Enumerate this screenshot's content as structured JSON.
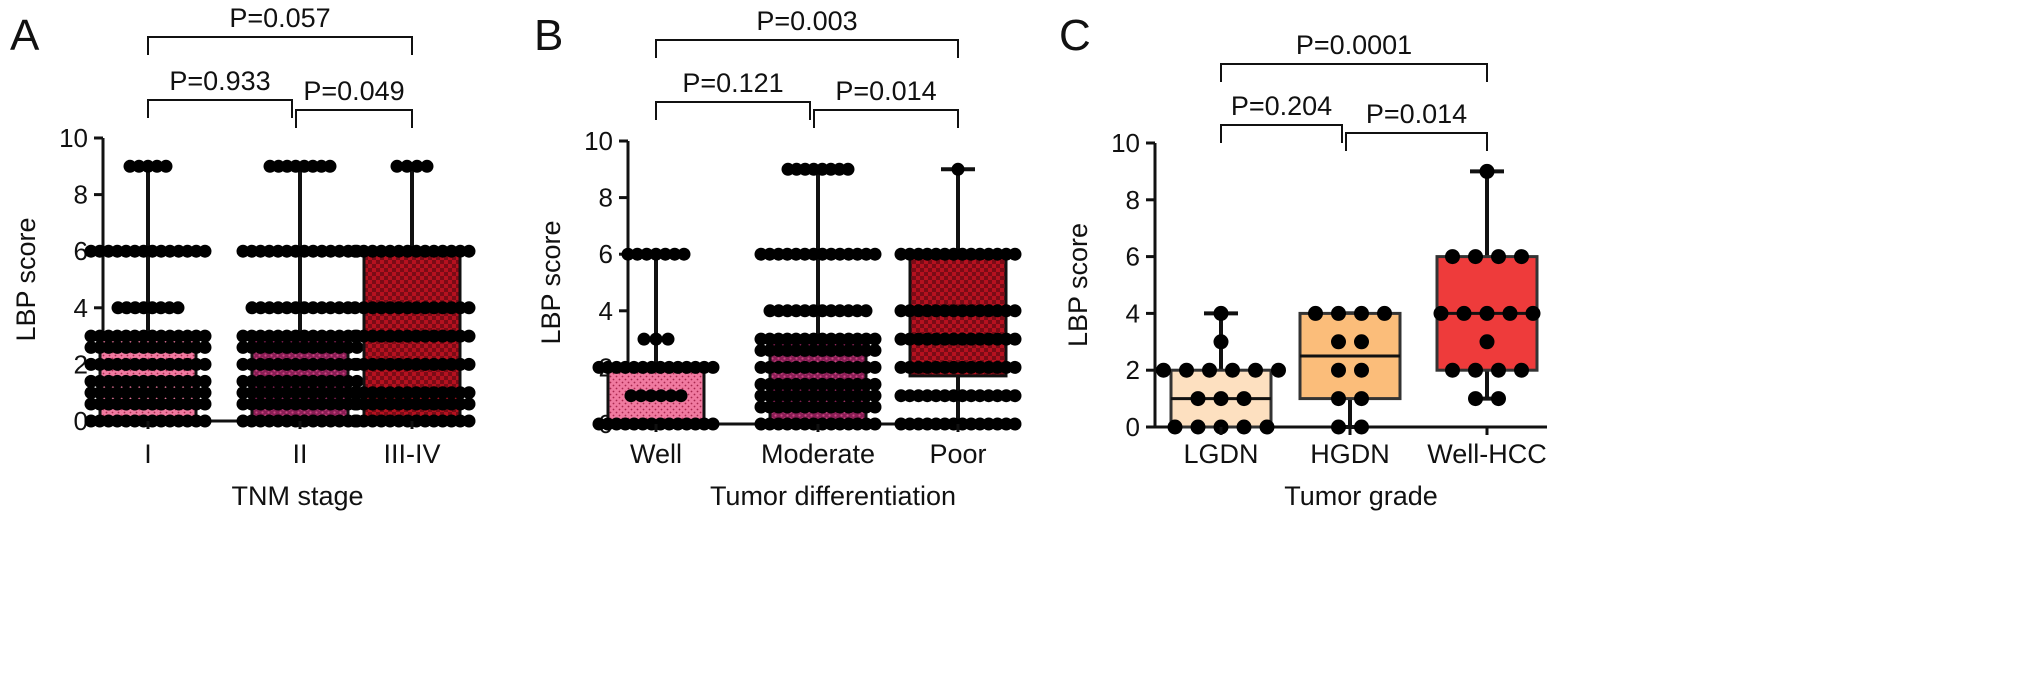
{
  "chart_data": [
    {
      "panel": "A",
      "type": "box",
      "ylabel": "LBP score",
      "xlabel": "TNM stage",
      "ylim": [
        0,
        10
      ],
      "yticks": [
        0,
        2,
        4,
        6,
        8,
        10
      ],
      "colors": {
        "fill": [
          "#f07aa0",
          "#8a1d55",
          "#7a0b16"
        ],
        "points": "#000000"
      },
      "categories": [
        "I",
        "II",
        "III-IV"
      ],
      "boxes": [
        {
          "min": 0,
          "q1": 0,
          "median": 0,
          "q3": 3,
          "max": 9
        },
        {
          "min": 0,
          "q1": 0,
          "median": 0,
          "q3": 3,
          "max": 9
        },
        {
          "min": 0,
          "q1": 0,
          "median": 2,
          "q3": 6,
          "max": 9
        }
      ],
      "points": [
        [
          0,
          0.6,
          1,
          1.4,
          2,
          2.6,
          3,
          4,
          6,
          9
        ],
        [
          0,
          0.6,
          1,
          1.4,
          2,
          2.6,
          3,
          4,
          6,
          9
        ],
        [
          0,
          0.6,
          1,
          2,
          3,
          4,
          6,
          9
        ]
      ],
      "comparisons": [
        {
          "pair": [
            0,
            1
          ],
          "label": "P=0.933"
        },
        {
          "pair": [
            1,
            2
          ],
          "label": "P=0.049"
        },
        {
          "pair": [
            0,
            2
          ],
          "label": "P=0.057"
        }
      ]
    },
    {
      "panel": "B",
      "type": "box",
      "ylabel": "LBP score",
      "xlabel": "Tumor differentiation",
      "ylim": [
        0,
        10
      ],
      "yticks": [
        0,
        2,
        4,
        6,
        8,
        10
      ],
      "colors": {
        "fill": [
          "#f07aa0",
          "#8a1d55",
          "#7a0b16"
        ],
        "points": "#000000"
      },
      "categories": [
        "Well",
        "Moderate",
        "Poor"
      ],
      "boxes": [
        {
          "min": 0,
          "q1": 0,
          "median": 0,
          "q3": 2,
          "max": 6
        },
        {
          "min": 0,
          "q1": 0,
          "median": 0.9,
          "q3": 3,
          "max": 9
        },
        {
          "min": 0,
          "q1": 1.7,
          "median": 3,
          "q3": 6,
          "max": 9
        }
      ],
      "points": [
        [
          0,
          1,
          2,
          3,
          6
        ],
        [
          0,
          0.6,
          1,
          1.4,
          2,
          2.6,
          3,
          4,
          6,
          9
        ],
        [
          0,
          1,
          2,
          3,
          4,
          6,
          9
        ]
      ],
      "comparisons": [
        {
          "pair": [
            0,
            1
          ],
          "label": "P=0.121"
        },
        {
          "pair": [
            1,
            2
          ],
          "label": "P=0.014"
        },
        {
          "pair": [
            0,
            2
          ],
          "label": "P=0.003"
        }
      ]
    },
    {
      "panel": "C",
      "type": "box",
      "ylabel": "LBP score",
      "xlabel": "Tumor grade",
      "ylim": [
        0,
        10
      ],
      "yticks": [
        0,
        2,
        4,
        6,
        8,
        10
      ],
      "colors": {
        "fill": [
          "#fde0c0",
          "#fbbd7a",
          "#ee3b3b"
        ],
        "points": "#000000"
      },
      "categories": [
        "LGDN",
        "HGDN",
        "Well-HCC"
      ],
      "boxes": [
        {
          "min": 0,
          "q1": 0,
          "median": 1,
          "q3": 2,
          "max": 4
        },
        {
          "min": 0,
          "q1": 1,
          "median": 2.5,
          "q3": 4,
          "max": 4
        },
        {
          "min": 1,
          "q1": 2,
          "median": 4,
          "q3": 6,
          "max": 9
        }
      ],
      "points": [
        [
          4,
          3,
          2,
          2,
          2,
          2,
          2,
          2,
          1,
          1,
          1,
          0,
          0,
          0,
          0,
          0
        ],
        [
          4,
          4,
          4,
          4,
          3,
          3,
          2,
          2,
          1,
          1,
          0,
          0
        ],
        [
          9,
          6,
          6,
          6,
          6,
          4,
          4,
          4,
          4,
          4,
          3,
          2,
          2,
          2,
          2,
          1,
          1
        ]
      ],
      "comparisons": [
        {
          "pair": [
            0,
            1
          ],
          "label": "P=0.204"
        },
        {
          "pair": [
            1,
            2
          ],
          "label": "P=0.014"
        },
        {
          "pair": [
            0,
            2
          ],
          "label": "P=0.0001"
        }
      ]
    }
  ]
}
